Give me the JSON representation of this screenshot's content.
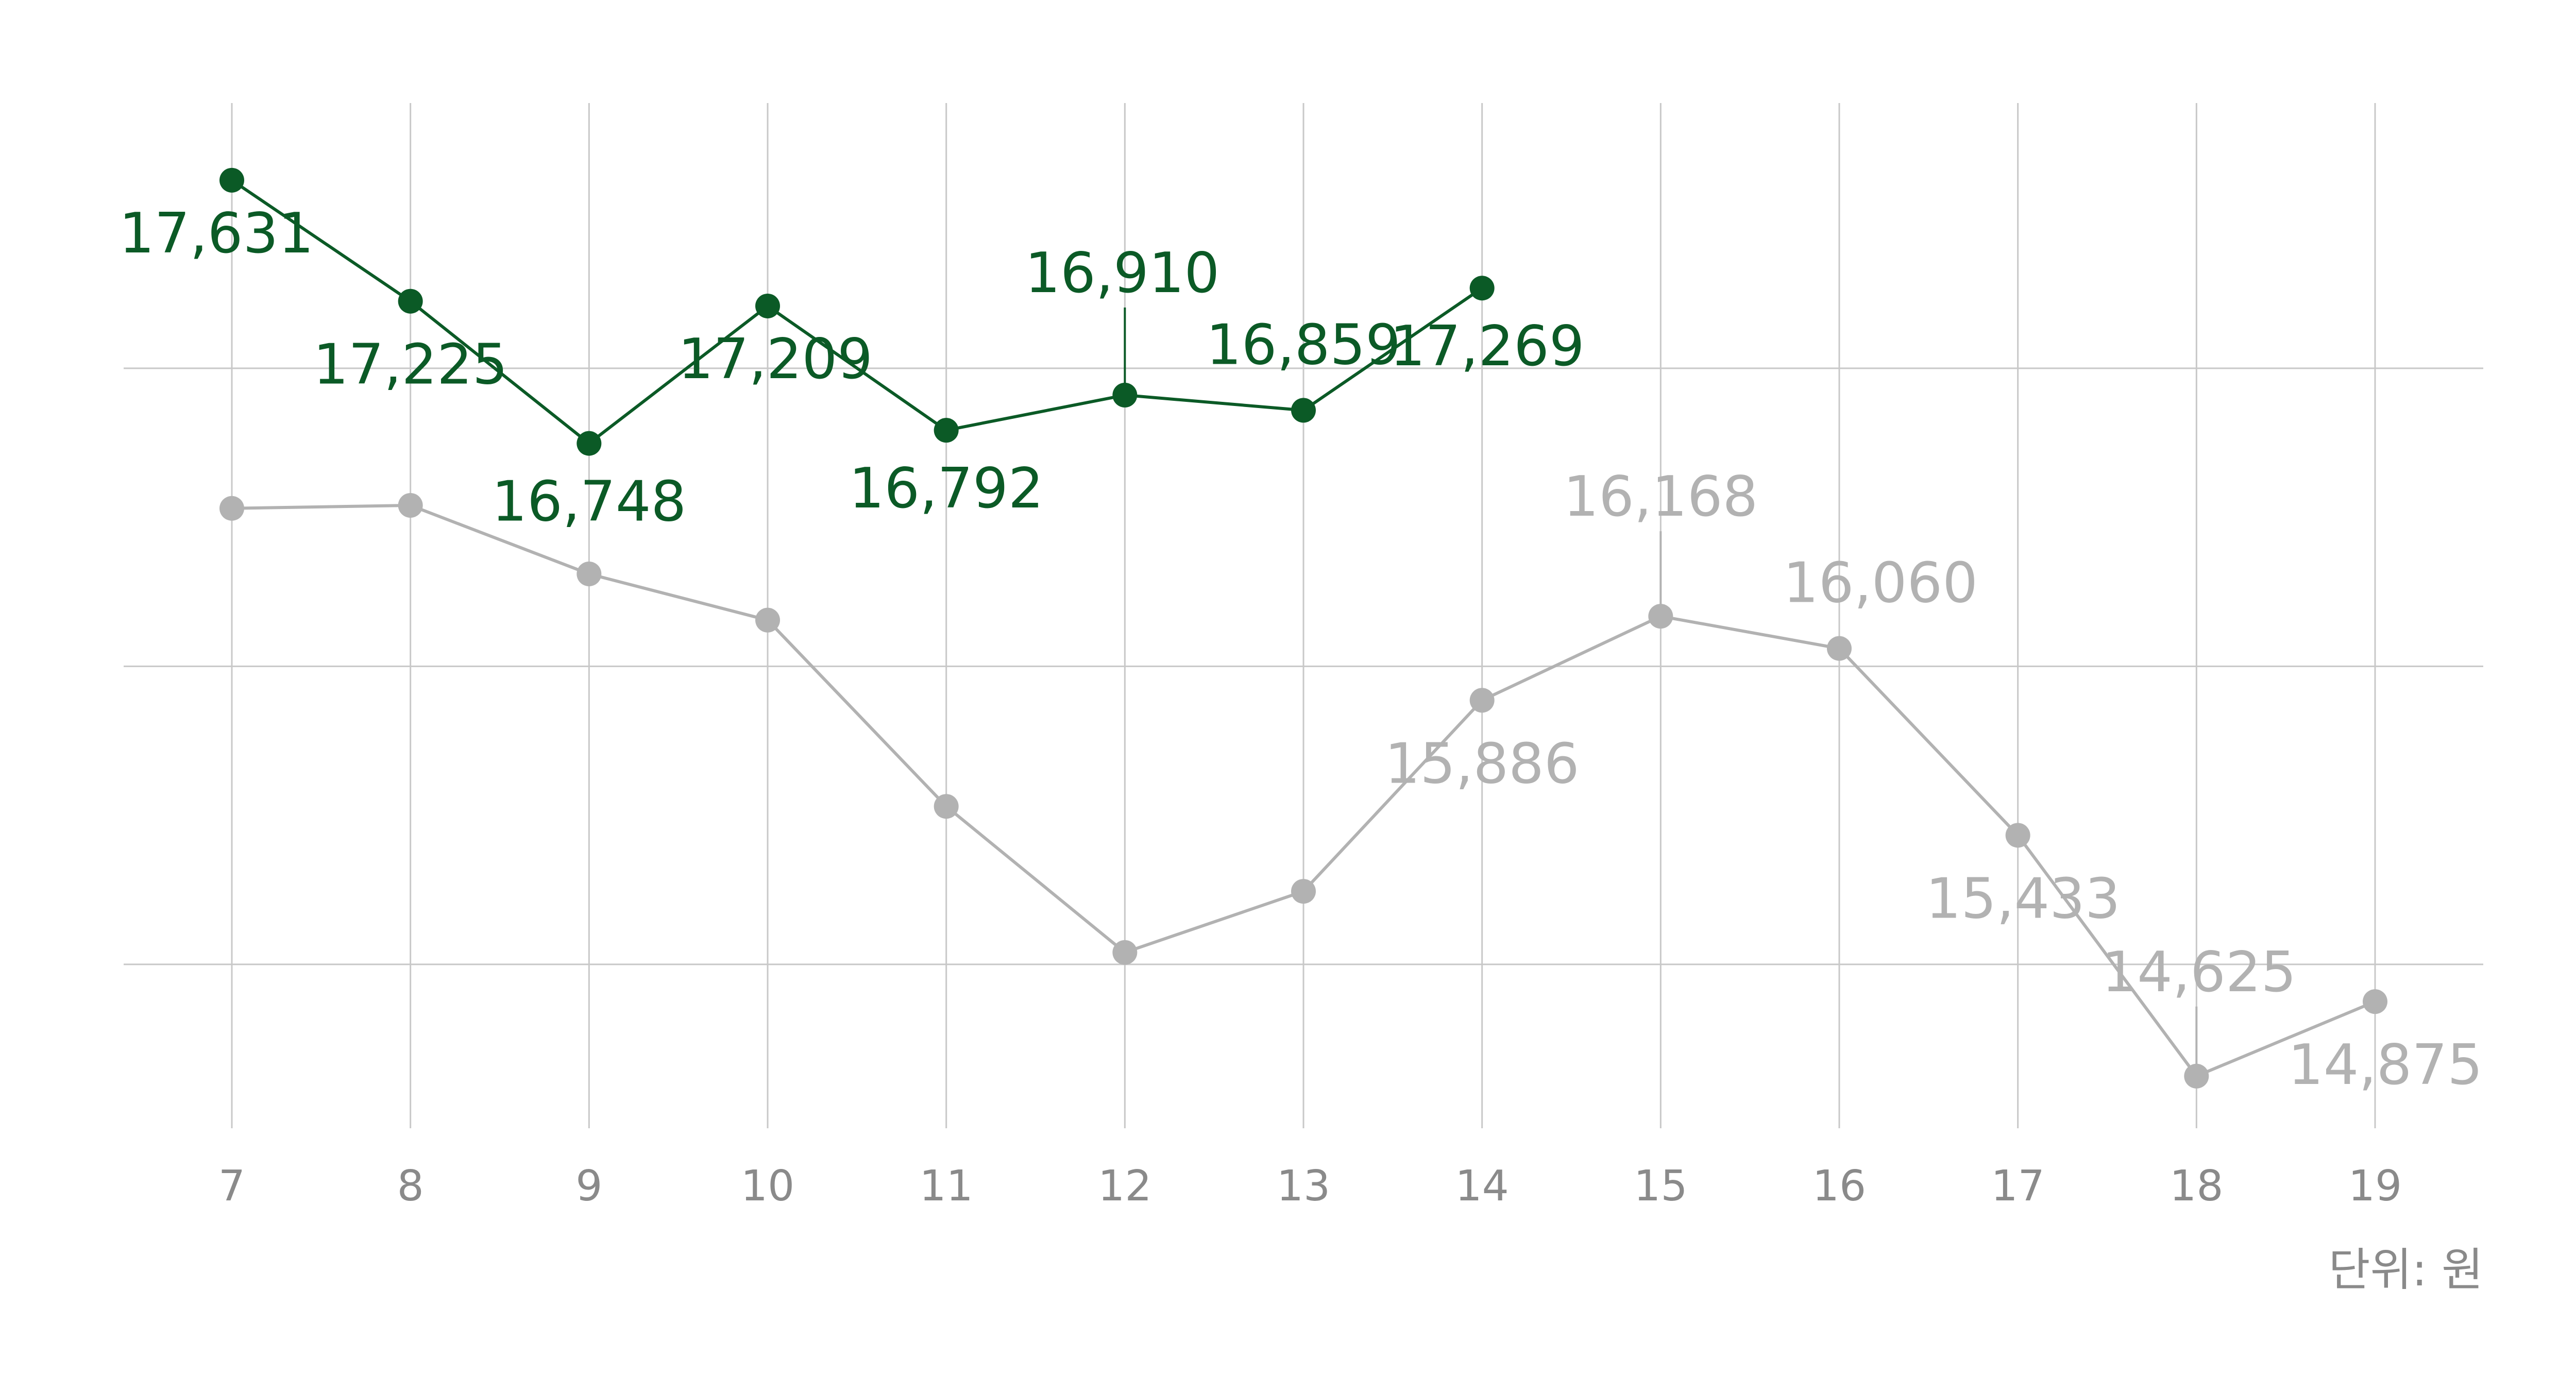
{
  "chart_data": {
    "type": "line",
    "x": [
      7,
      8,
      9,
      10,
      11,
      12,
      13,
      14,
      15,
      16,
      17,
      18,
      19
    ],
    "categories": [
      "7",
      "8",
      "9",
      "10",
      "11",
      "12",
      "13",
      "14",
      "15",
      "16",
      "17",
      "18",
      "19"
    ],
    "series": [
      {
        "color": "#0b5a26",
        "values": [
          17631,
          17225,
          16748,
          17209,
          16792,
          16910,
          16859,
          17269,
          null,
          null,
          null,
          null,
          null
        ],
        "labels": [
          "17,631",
          "17,225",
          "16,748",
          "17,209",
          "16,792",
          "16,910",
          "16,859",
          "17,269",
          "",
          "",
          "",
          "",
          ""
        ]
      },
      {
        "color": "#b2b2b2",
        "values": [
          16530,
          16540,
          16310,
          16155,
          15530,
          15040,
          15245,
          15886,
          16168,
          16060,
          15433,
          14625,
          14875
        ],
        "labels": [
          "",
          "",
          "",
          "",
          "",
          "",
          "",
          "15,886",
          "16,168",
          "16,060",
          "15,433",
          "14,625",
          "14,875"
        ]
      }
    ],
    "ylim": [
      14450,
      17890
    ],
    "y_gridlines": [
      15000,
      16000,
      17000
    ],
    "grid": true,
    "unit_text": "단위: 원",
    "colors": {
      "grid": "#c8c8c8",
      "axis_text": "#8a8a8a"
    }
  }
}
